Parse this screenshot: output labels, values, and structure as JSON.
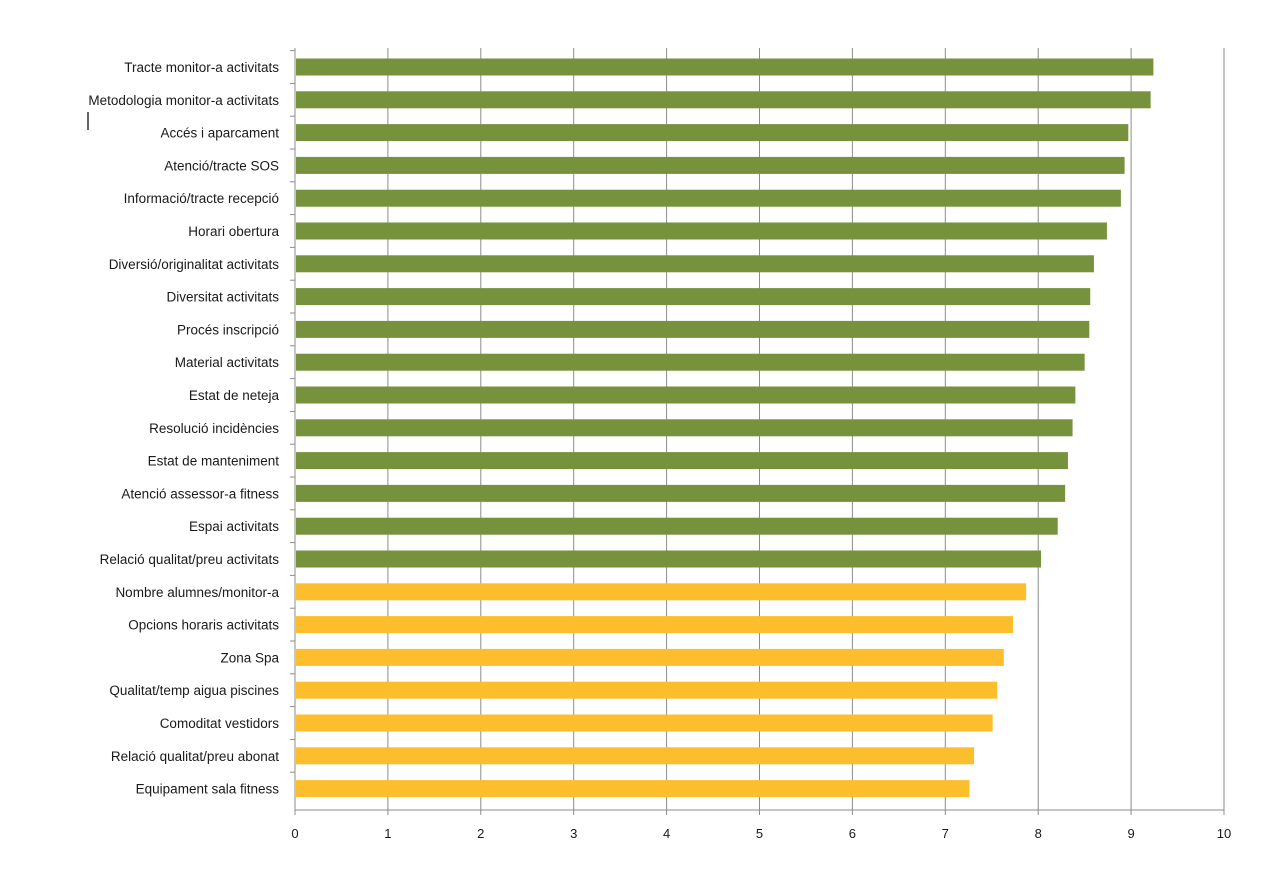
{
  "chart_data": {
    "type": "bar",
    "orientation": "horizontal",
    "title": "",
    "xlabel": "",
    "ylabel": "",
    "xlim": [
      0,
      10
    ],
    "x_ticks": [
      0,
      1,
      2,
      3,
      4,
      5,
      6,
      7,
      8,
      9,
      10
    ],
    "grid": true,
    "legend": "none",
    "colors": {
      "high": "#76923c",
      "low": "#fdbe2e"
    },
    "categories": [
      "Tracte monitor-a activitats",
      "Metodologia monitor-a activitats",
      "Accés i aparcament",
      "Atenció/tracte SOS",
      "Informació/tracte recepció",
      "Horari obertura",
      "Diversió/originalitat activitats",
      "Diversitat activitats",
      "Procés inscripció",
      "Material activitats",
      "Estat de neteja",
      "Resolució incidències",
      "Estat de manteniment",
      "Atenció assessor-a fitness",
      "Espai activitats",
      "Relació qualitat/preu activitats",
      "Nombre alumnes/monitor-a",
      "Opcions horaris activitats",
      "Zona Spa",
      "Qualitat/temp aigua piscines",
      "Comoditat vestidors",
      "Relació qualitat/preu abonat",
      "Equipament sala fitness"
    ],
    "values": [
      9.24,
      9.21,
      8.97,
      8.93,
      8.89,
      8.74,
      8.6,
      8.56,
      8.55,
      8.5,
      8.4,
      8.37,
      8.32,
      8.29,
      8.21,
      8.03,
      7.87,
      7.73,
      7.63,
      7.56,
      7.51,
      7.31,
      7.26
    ],
    "color_groups": [
      "high",
      "high",
      "high",
      "high",
      "high",
      "high",
      "high",
      "high",
      "high",
      "high",
      "high",
      "high",
      "high",
      "high",
      "high",
      "high",
      "low",
      "low",
      "low",
      "low",
      "low",
      "low",
      "low"
    ]
  }
}
